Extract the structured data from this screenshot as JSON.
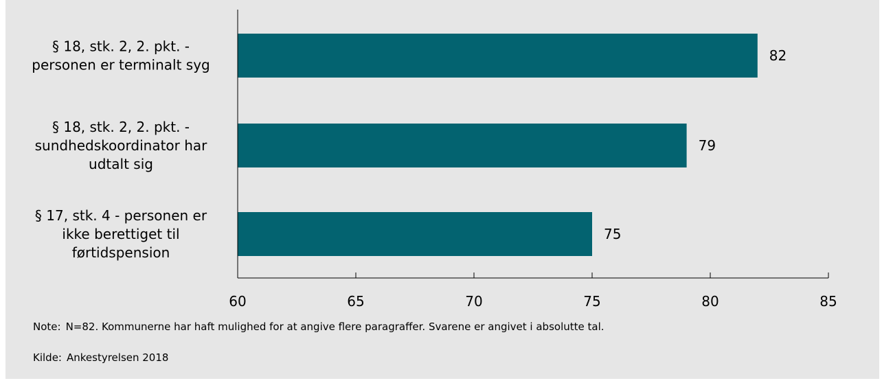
{
  "chart_data": {
    "type": "bar",
    "orientation": "horizontal",
    "categories": [
      [
        "§ 18, stk. 2, 2. pkt. -",
        "personen er terminalt syg"
      ],
      [
        "§ 18, stk. 2, 2. pkt. -",
        "sundhedskoordinator har",
        "udtalt sig"
      ],
      [
        "§ 17, stk. 4 - personen er",
        "ikke berettiget til",
        "førtidspension"
      ]
    ],
    "values": [
      82,
      79,
      75
    ],
    "data_labels": [
      "82",
      "79",
      "75"
    ],
    "xlim": [
      60,
      85
    ],
    "xticks": [
      60,
      65,
      70,
      75,
      80,
      85
    ],
    "bar_color": "#036370",
    "background": "#e6e6e6",
    "grid": false
  },
  "note": {
    "label": "Note:",
    "text": "N=82. Kommunerne har haft mulighed for at angive flere paragraffer. Svarene er angivet i absolutte tal."
  },
  "source": {
    "label": "Kilde:",
    "text": "Ankestyrelsen 2018"
  }
}
